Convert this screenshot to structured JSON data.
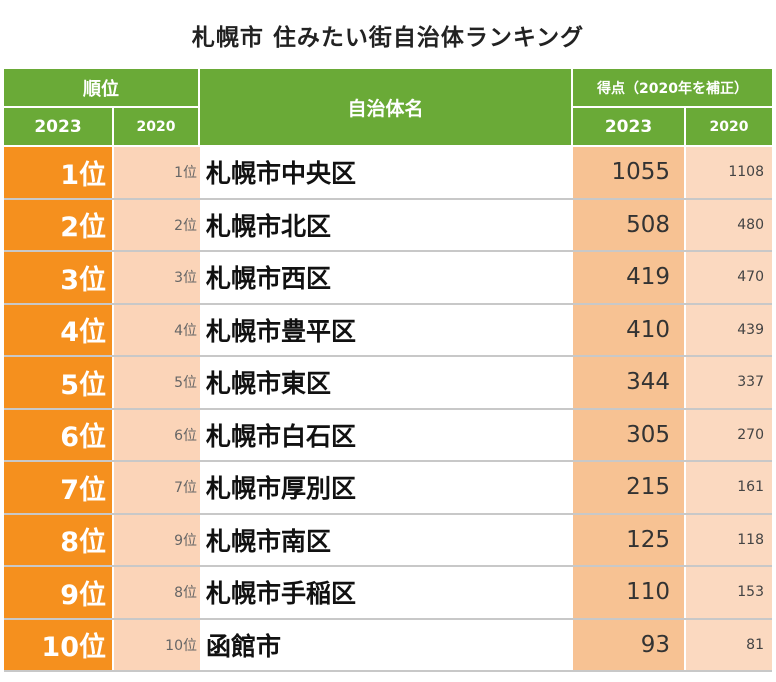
{
  "title": "札幌市 住みたい街自治体ランキング",
  "header": {
    "rank": "順位",
    "name": "自治体名",
    "score": "得点（2020年を補正）",
    "year_2023": "2023",
    "year_2020": "2020"
  },
  "rows": [
    {
      "rank_2023": "1位",
      "rank_2020": "1位",
      "name": "札幌市中央区",
      "score_2023": "1055",
      "score_2020": "1108"
    },
    {
      "rank_2023": "2位",
      "rank_2020": "2位",
      "name": "札幌市北区",
      "score_2023": "508",
      "score_2020": "480"
    },
    {
      "rank_2023": "3位",
      "rank_2020": "3位",
      "name": "札幌市西区",
      "score_2023": "419",
      "score_2020": "470"
    },
    {
      "rank_2023": "4位",
      "rank_2020": "4位",
      "name": "札幌市豊平区",
      "score_2023": "410",
      "score_2020": "439"
    },
    {
      "rank_2023": "5位",
      "rank_2020": "5位",
      "name": "札幌市東区",
      "score_2023": "344",
      "score_2020": "337"
    },
    {
      "rank_2023": "6位",
      "rank_2020": "6位",
      "name": "札幌市白石区",
      "score_2023": "305",
      "score_2020": "270"
    },
    {
      "rank_2023": "7位",
      "rank_2020": "7位",
      "name": "札幌市厚別区",
      "score_2023": "215",
      "score_2020": "161"
    },
    {
      "rank_2023": "8位",
      "rank_2020": "9位",
      "name": "札幌市南区",
      "score_2023": "125",
      "score_2020": "118"
    },
    {
      "rank_2023": "9位",
      "rank_2020": "8位",
      "name": "札幌市手稲区",
      "score_2023": "110",
      "score_2020": "153"
    },
    {
      "rank_2023": "10位",
      "rank_2020": "10位",
      "name": "函館市",
      "score_2023": "93",
      "score_2020": "81"
    }
  ],
  "colors": {
    "header_green": "#6aaa37",
    "rank_orange": "#f5901e",
    "score_peach": "#f7c293"
  }
}
